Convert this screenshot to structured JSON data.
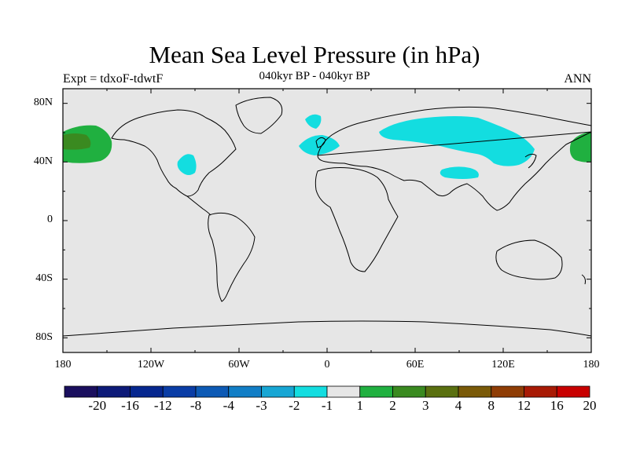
{
  "title": "Mean Sea Level Pressure (in hPa)",
  "subtitle": "040kyr BP - 040kyr BP",
  "left_label": "Expt = tdxoF-tdwtF",
  "right_label": "ANN",
  "lat_ticks": [
    "80N",
    "40N",
    "0",
    "40S",
    "80S"
  ],
  "lon_ticks": [
    "180",
    "120W",
    "60W",
    "0",
    "60E",
    "120E",
    "180"
  ],
  "colorbar": {
    "labels": [
      "-20",
      "-16",
      "-12",
      "-8",
      "-4",
      "-3",
      "-2",
      "-1",
      "1",
      "2",
      "3",
      "4",
      "8",
      "12",
      "16",
      "20"
    ],
    "colors": [
      "#1a0f5e",
      "#0d1a78",
      "#06278f",
      "#0a3da6",
      "#0d5ab5",
      "#117ec6",
      "#17a6d4",
      "#13dde0",
      "#e6e6e6",
      "#20b040",
      "#3a8a20",
      "#5a7010",
      "#7a5a08",
      "#8f3d05",
      "#a81a05",
      "#c80000"
    ]
  },
  "map": {
    "background_color": "#e6e6e6",
    "coastline_color": "#000000",
    "anomaly_regions": [
      {
        "name": "north-pacific-west",
        "category": "2 to 3 hPa",
        "color": "#20b040"
      },
      {
        "name": "north-pacific-west-core",
        "category": "3 to 4 hPa",
        "color": "#3a8a20"
      },
      {
        "name": "north-pacific-east",
        "category": "2 to 3 hPa",
        "color": "#20b040"
      },
      {
        "name": "eurasia",
        "category": "-2 to -1 hPa",
        "color": "#13dde0"
      },
      {
        "name": "tibet",
        "category": "-2 to -1 hPa",
        "color": "#13dde0"
      },
      {
        "name": "north-atlantic",
        "category": "-2 to -1 hPa",
        "color": "#13dde0"
      },
      {
        "name": "north-america",
        "category": "-2 to -1 hPa",
        "color": "#13dde0"
      },
      {
        "name": "greenland-east",
        "category": "-2 to -1 hPa",
        "color": "#13dde0"
      }
    ]
  }
}
